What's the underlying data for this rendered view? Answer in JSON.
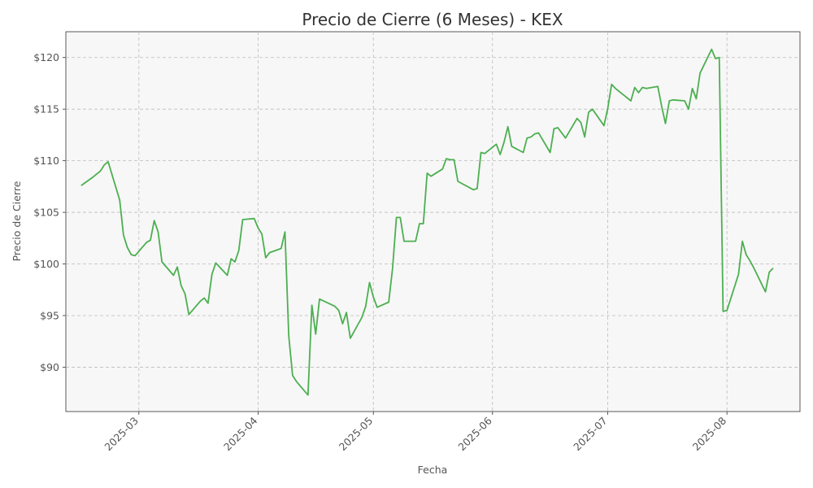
{
  "chart_data": {
    "type": "line",
    "title": "Precio de Cierre (6 Meses) - KEX",
    "xlabel": "Fecha",
    "ylabel": "Precio de Cierre",
    "x_ticks": [
      "2025-03",
      "2025-04",
      "2025-05",
      "2025-06",
      "2025-07",
      "2025-08"
    ],
    "y_ticks": [
      "$90",
      "$95",
      "$100",
      "$105",
      "$110",
      "$115",
      "$120"
    ],
    "xlim": [
      "2025-02-10",
      "2025-08-20"
    ],
    "ylim": [
      85.7,
      122.5
    ],
    "grid": true,
    "line_color": "#4caf50",
    "plot_background": "#f7f7f7",
    "series": [
      {
        "x": [
          "2025-02-14",
          "2025-02-17",
          "2025-02-18",
          "2025-02-19",
          "2025-02-20",
          "2025-02-21",
          "2025-02-24",
          "2025-02-25",
          "2025-02-26",
          "2025-02-27",
          "2025-02-28",
          "2025-03-03",
          "2025-03-04",
          "2025-03-05",
          "2025-03-06",
          "2025-03-07",
          "2025-03-10",
          "2025-03-11",
          "2025-03-12",
          "2025-03-13",
          "2025-03-14",
          "2025-03-17",
          "2025-03-18",
          "2025-03-19",
          "2025-03-20",
          "2025-03-21",
          "2025-03-24",
          "2025-03-25",
          "2025-03-26",
          "2025-03-27",
          "2025-03-28",
          "2025-03-31",
          "2025-04-01",
          "2025-04-02",
          "2025-04-03",
          "2025-04-04",
          "2025-04-07",
          "2025-04-08",
          "2025-04-09",
          "2025-04-10",
          "2025-04-11",
          "2025-04-14",
          "2025-04-15",
          "2025-04-16",
          "2025-04-17",
          "2025-04-21",
          "2025-04-22",
          "2025-04-23",
          "2025-04-24",
          "2025-04-25",
          "2025-04-28",
          "2025-04-29",
          "2025-04-30",
          "2025-05-01",
          "2025-05-02",
          "2025-05-05",
          "2025-05-06",
          "2025-05-07",
          "2025-05-08",
          "2025-05-09",
          "2025-05-12",
          "2025-05-13",
          "2025-05-14",
          "2025-05-15",
          "2025-05-16",
          "2025-05-19",
          "2025-05-20",
          "2025-05-21",
          "2025-05-22",
          "2025-05-23",
          "2025-05-27",
          "2025-05-28",
          "2025-05-29",
          "2025-05-30",
          "2025-06-02",
          "2025-06-03",
          "2025-06-04",
          "2025-06-05",
          "2025-06-06",
          "2025-06-09",
          "2025-06-10",
          "2025-06-11",
          "2025-06-12",
          "2025-06-13",
          "2025-06-16",
          "2025-06-17",
          "2025-06-18",
          "2025-06-20",
          "2025-06-23",
          "2025-06-24",
          "2025-06-25",
          "2025-06-26",
          "2025-06-27",
          "2025-06-30",
          "2025-07-01",
          "2025-07-02",
          "2025-07-03",
          "2025-07-07",
          "2025-07-08",
          "2025-07-09",
          "2025-07-10",
          "2025-07-11",
          "2025-07-14",
          "2025-07-15",
          "2025-07-16",
          "2025-07-17",
          "2025-07-18",
          "2025-07-21",
          "2025-07-22",
          "2025-07-23",
          "2025-07-24",
          "2025-07-25",
          "2025-07-28",
          "2025-07-29",
          "2025-07-30",
          "2025-07-31",
          "2025-08-01",
          "2025-08-04",
          "2025-08-05",
          "2025-08-06",
          "2025-08-07",
          "2025-08-08",
          "2025-08-11",
          "2025-08-12",
          "2025-08-13"
        ],
        "y": [
          107.6,
          108.4,
          108.7,
          109.0,
          109.6,
          109.9,
          106.2,
          102.8,
          101.6,
          100.9,
          100.8,
          102.1,
          102.3,
          104.2,
          103.1,
          100.2,
          98.9,
          99.7,
          97.9,
          97.1,
          95.1,
          96.4,
          96.7,
          96.2,
          99.0,
          100.1,
          98.9,
          100.5,
          100.2,
          101.3,
          104.3,
          104.4,
          103.5,
          102.9,
          100.6,
          101.1,
          101.5,
          103.1,
          93.0,
          89.2,
          88.6,
          87.3,
          96.0,
          93.2,
          96.6,
          95.9,
          95.5,
          94.2,
          95.3,
          92.8,
          94.8,
          95.9,
          98.2,
          96.8,
          95.8,
          96.3,
          99.6,
          104.5,
          104.5,
          102.2,
          102.2,
          103.9,
          103.9,
          108.8,
          108.5,
          109.2,
          110.2,
          110.1,
          110.1,
          108.0,
          107.2,
          107.3,
          110.8,
          110.7,
          111.6,
          110.6,
          111.8,
          113.3,
          111.4,
          110.8,
          112.2,
          112.3,
          112.6,
          112.7,
          110.8,
          113.1,
          113.2,
          112.2,
          114.1,
          113.7,
          112.3,
          114.7,
          115.0,
          113.4,
          115.1,
          117.4,
          117.0,
          115.8,
          117.1,
          116.6,
          117.1,
          117.0,
          117.2,
          115.3,
          113.6,
          115.8,
          115.9,
          115.8,
          115.0,
          117.0,
          116.0,
          118.5,
          120.8,
          119.9,
          120.0,
          95.4,
          95.5,
          99.0,
          102.2,
          100.9,
          100.3,
          99.6,
          97.3,
          99.2,
          99.6
        ]
      }
    ]
  }
}
